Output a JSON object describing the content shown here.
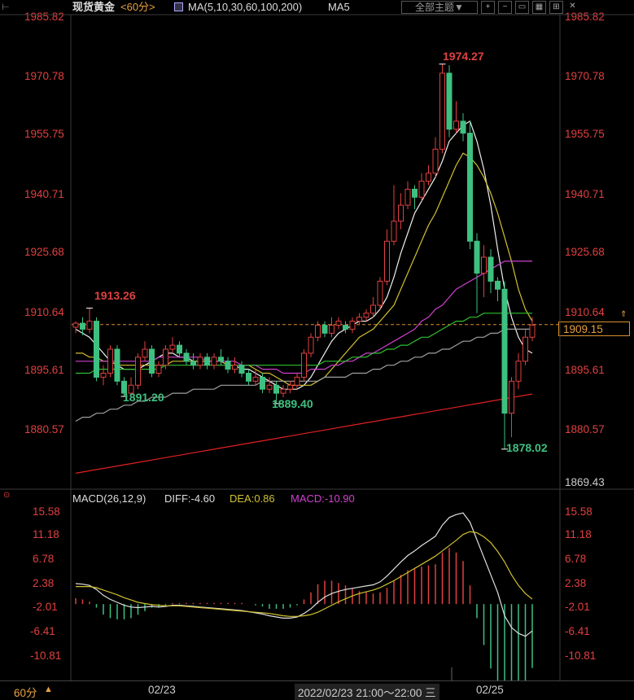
{
  "header": {
    "symbol": "现货黄金",
    "period": "<60分>",
    "ma_label": "MA(5,10,30,60,100,200)",
    "ma5_label": "MA5",
    "theme_button": "全部主题▼",
    "icons": [
      "expand-icon",
      "collapse-icon",
      "layout-icon",
      "grid-icon",
      "fullscreen-icon",
      "close-icon"
    ],
    "colors": {
      "red": "#e04040",
      "green": "#3ec080",
      "yellow": "#d0c030",
      "magenta": "#d040d0",
      "gold": "#e8a040"
    }
  },
  "price_axis": {
    "labels": [
      "1985.82",
      "1970.78",
      "1955.75",
      "1940.71",
      "1925.68",
      "1910.64",
      "1895.61",
      "1880.57"
    ],
    "bottom_label": "1869.43",
    "current_price": "1909.15"
  },
  "annotations": {
    "high_left": "1913.26",
    "low_left": "1891.20",
    "low_mid": "1889.40",
    "peak": "1974.27",
    "trough": "1878.02"
  },
  "macd": {
    "label": "MACD(26,12,9)",
    "diff": "DIFF:-4.60",
    "dea": "DEA:0.86",
    "macd": "MACD:-10.90",
    "axis_labels": [
      "15.58",
      "11.18",
      "6.78",
      "2.38",
      "-2.01",
      "-6.41",
      "-10.81"
    ]
  },
  "bottom_bar": {
    "period": "60分",
    "arrow": "▲",
    "date1": "02/23",
    "range": "2022/02/23 21:00～22:00 三",
    "date2": "02/25"
  },
  "chart_data": {
    "type": "candlestick",
    "ylim": [
      1869.43,
      1985.82
    ],
    "reference_price": 1909.15,
    "candles": [
      [
        1908.5,
        1909.5,
        1907,
        1910
      ],
      [
        1909.5,
        1908,
        1906.5,
        1911
      ],
      [
        1908,
        1910,
        1907,
        1913.26
      ],
      [
        1910,
        1896,
        1895,
        1911
      ],
      [
        1896,
        1897,
        1894,
        1899
      ],
      [
        1897,
        1903,
        1896,
        1904
      ],
      [
        1903,
        1895,
        1894,
        1904
      ],
      [
        1895,
        1892,
        1891.2,
        1896
      ],
      [
        1892,
        1894,
        1891.5,
        1896
      ],
      [
        1894,
        1901,
        1893,
        1902
      ],
      [
        1901,
        1903,
        1900,
        1905
      ],
      [
        1903,
        1897,
        1896,
        1904
      ],
      [
        1897,
        1899,
        1896,
        1900
      ],
      [
        1899,
        1903,
        1898,
        1904
      ],
      [
        1903,
        1904,
        1902,
        1906
      ],
      [
        1904,
        1902,
        1901,
        1905
      ],
      [
        1902,
        1900,
        1899,
        1903
      ],
      [
        1900,
        1899,
        1898,
        1902
      ],
      [
        1899,
        1901,
        1898,
        1902
      ],
      [
        1901,
        1899,
        1898,
        1902
      ],
      [
        1899,
        1901,
        1898,
        1902
      ],
      [
        1901,
        1900,
        1899,
        1903
      ],
      [
        1900,
        1898,
        1897,
        1901
      ],
      [
        1898,
        1899,
        1897,
        1901
      ],
      [
        1899,
        1897,
        1896,
        1900
      ],
      [
        1897,
        1895,
        1894,
        1898
      ],
      [
        1895,
        1896,
        1894,
        1898
      ],
      [
        1896,
        1893,
        1892,
        1897
      ],
      [
        1893,
        1894,
        1892,
        1896
      ],
      [
        1894,
        1892,
        1889.4,
        1895
      ],
      [
        1892,
        1893,
        1891,
        1894
      ],
      [
        1893,
        1894,
        1892,
        1895
      ],
      [
        1894,
        1896,
        1893,
        1897
      ],
      [
        1896,
        1902,
        1895,
        1903
      ],
      [
        1902,
        1906,
        1901,
        1907
      ],
      [
        1906,
        1909,
        1905,
        1910
      ],
      [
        1909,
        1907,
        1906,
        1910
      ],
      [
        1907,
        1909,
        1906,
        1911
      ],
      [
        1909,
        1910,
        1908,
        1911
      ],
      [
        1909,
        1908,
        1907,
        1910
      ],
      [
        1908,
        1910,
        1907,
        1911
      ],
      [
        1910,
        1911,
        1909,
        1912
      ],
      [
        1911,
        1912,
        1910,
        1913
      ],
      [
        1912,
        1914,
        1911,
        1916
      ],
      [
        1914,
        1920,
        1913,
        1921
      ],
      [
        1920,
        1930,
        1919,
        1933
      ],
      [
        1930,
        1935,
        1929,
        1944
      ],
      [
        1935,
        1939,
        1933,
        1942
      ],
      [
        1939,
        1943,
        1938,
        1945
      ],
      [
        1943,
        1941,
        1938,
        1944
      ],
      [
        1941,
        1945,
        1940,
        1947
      ],
      [
        1945,
        1947,
        1944,
        1949
      ],
      [
        1947,
        1953,
        1946,
        1956
      ],
      [
        1953,
        1972,
        1952,
        1974.27
      ],
      [
        1972,
        1958,
        1956,
        1974
      ],
      [
        1958,
        1960,
        1957,
        1965
      ],
      [
        1960,
        1957,
        1955,
        1962
      ],
      [
        1957,
        1930,
        1928,
        1960
      ],
      [
        1930,
        1922,
        1912,
        1932
      ],
      [
        1922,
        1926,
        1916,
        1929
      ],
      [
        1926,
        1920,
        1917,
        1928
      ],
      [
        1920,
        1918,
        1915,
        1921
      ],
      [
        1918,
        1887,
        1878.02,
        1920
      ],
      [
        1887,
        1895,
        1881,
        1896
      ],
      [
        1895,
        1900,
        1893,
        1902
      ],
      [
        1900,
        1906,
        1899,
        1908
      ],
      [
        1906,
        1909,
        1905,
        1911
      ]
    ],
    "ma_series": [
      {
        "color": "#f0f0f0",
        "values": [
          1908,
          1907,
          1906,
          1904,
          1902,
          1900,
          1899,
          1898,
          1898,
          1898,
          1899,
          1900,
          1901,
          1902,
          1902,
          1901,
          1901,
          1900,
          1900,
          1900,
          1900,
          1900,
          1899,
          1899,
          1898,
          1898,
          1897,
          1896,
          1895,
          1894,
          1893,
          1893,
          1893,
          1894,
          1896,
          1899,
          1902,
          1905,
          1907,
          1908,
          1909,
          1910,
          1910,
          1911,
          1913,
          1916,
          1921,
          1927,
          1932,
          1937,
          1940,
          1943,
          1946,
          1950,
          1955,
          1957,
          1959,
          1960,
          1955,
          1948,
          1939,
          1928,
          1918,
          1911,
          1906,
          1903,
          1902
        ]
      },
      {
        "color": "#d0c030",
        "values": [
          1902,
          1902,
          1901,
          1901,
          1900,
          1900,
          1899,
          1899,
          1899,
          1899,
          1899,
          1899,
          1899,
          1899,
          1900,
          1900,
          1900,
          1900,
          1900,
          1900,
          1900,
          1900,
          1899,
          1899,
          1899,
          1899,
          1898,
          1897,
          1897,
          1896,
          1895,
          1894,
          1894,
          1894,
          1894,
          1895,
          1896,
          1898,
          1900,
          1902,
          1904,
          1906,
          1907,
          1908,
          1910,
          1912,
          1914,
          1918,
          1922,
          1926,
          1930,
          1934,
          1937,
          1941,
          1945,
          1949,
          1952,
          1951,
          1949,
          1946,
          1942,
          1937,
          1931,
          1925,
          1918,
          1913,
          1910
        ]
      },
      {
        "color": "#d040d0",
        "values": [
          1900,
          1900,
          1900,
          1900,
          1900,
          1900,
          1900,
          1900,
          1900,
          1900,
          1900,
          1900,
          1901,
          1901,
          1901,
          1901,
          1901,
          1901,
          1901,
          1900,
          1900,
          1900,
          1900,
          1900,
          1899,
          1899,
          1899,
          1898,
          1898,
          1898,
          1897,
          1897,
          1897,
          1897,
          1898,
          1898,
          1898,
          1899,
          1899,
          1900,
          1900,
          1901,
          1902,
          1902,
          1903,
          1904,
          1905,
          1906,
          1907,
          1908,
          1910,
          1911,
          1913,
          1914,
          1916,
          1918,
          1919,
          1920,
          1921,
          1922,
          1923,
          1924,
          1925,
          1925,
          1925,
          1925,
          1925
        ]
      },
      {
        "color": "#30c030",
        "values": [
          1897,
          1897,
          1897,
          1898,
          1898,
          1898,
          1898,
          1898,
          1898,
          1898,
          1898,
          1898,
          1898,
          1899,
          1899,
          1899,
          1899,
          1899,
          1899,
          1899,
          1899,
          1899,
          1899,
          1899,
          1899,
          1899,
          1899,
          1899,
          1899,
          1899,
          1899,
          1899,
          1899,
          1899,
          1899,
          1899,
          1900,
          1900,
          1900,
          1900,
          1901,
          1901,
          1901,
          1902,
          1902,
          1903,
          1903,
          1904,
          1904,
          1905,
          1906,
          1906,
          1907,
          1908,
          1909,
          1910,
          1910,
          1911,
          1911,
          1912,
          1912,
          1912,
          1912,
          1912,
          1912,
          1912,
          1912
        ]
      },
      {
        "color": "#a0a0a0",
        "values": [
          1885,
          1886,
          1886,
          1887,
          1887,
          1888,
          1888,
          1889,
          1889,
          1890,
          1890,
          1891,
          1891,
          1891,
          1892,
          1892,
          1892,
          1893,
          1893,
          1893,
          1893,
          1894,
          1894,
          1894,
          1894,
          1894,
          1894,
          1895,
          1895,
          1895,
          1895,
          1895,
          1895,
          1895,
          1895,
          1895,
          1896,
          1896,
          1896,
          1896,
          1897,
          1897,
          1897,
          1898,
          1898,
          1899,
          1899,
          1900,
          1900,
          1901,
          1901,
          1902,
          1902,
          1903,
          1903,
          1904,
          1905,
          1905,
          1906,
          1906,
          1907,
          1907,
          1908,
          1908,
          1908,
          1908,
          1908
        ]
      },
      {
        "color": "#e02020",
        "values": [
          1872,
          1872.3,
          1872.6,
          1872.9,
          1873.2,
          1873.5,
          1873.8,
          1874.1,
          1874.4,
          1874.7,
          1875,
          1875.3,
          1875.6,
          1875.9,
          1876.2,
          1876.5,
          1876.8,
          1877.1,
          1877.4,
          1877.7,
          1878,
          1878.3,
          1878.6,
          1878.9,
          1879.2,
          1879.5,
          1879.8,
          1880.1,
          1880.4,
          1880.7,
          1881,
          1881.3,
          1881.6,
          1881.9,
          1882.2,
          1882.5,
          1882.8,
          1883.1,
          1883.4,
          1883.7,
          1884,
          1884.3,
          1884.6,
          1884.9,
          1885.2,
          1885.5,
          1885.8,
          1886.1,
          1886.4,
          1886.7,
          1887,
          1887.3,
          1887.6,
          1887.9,
          1888.2,
          1888.5,
          1888.8,
          1889.1,
          1889.4,
          1889.7,
          1890,
          1890.3,
          1890.6,
          1890.9,
          1891.2,
          1891.5,
          1891.8
        ]
      }
    ],
    "macd_series": {
      "ylim": [
        -12.5,
        17
      ],
      "diff": [
        3.5,
        3.4,
        3.2,
        2.5,
        1.5,
        0.8,
        0.3,
        -0.2,
        -0.5,
        -0.6,
        -0.5,
        -0.4,
        -0.5,
        -0.4,
        -0.2,
        -0.2,
        -0.3,
        -0.4,
        -0.5,
        -0.6,
        -0.7,
        -0.8,
        -0.9,
        -1.0,
        -1.1,
        -1.3,
        -1.5,
        -1.7,
        -2.0,
        -2.2,
        -2.4,
        -2.4,
        -2.2,
        -1.6,
        -0.8,
        0.3,
        1.2,
        1.8,
        2.2,
        2.5,
        2.7,
        2.9,
        3.1,
        3.3,
        3.8,
        4.8,
        6.0,
        7.2,
        8.3,
        9.1,
        10.0,
        10.8,
        11.6,
        13.5,
        14.8,
        15.3,
        15.58,
        14.0,
        11.0,
        8.0,
        5.0,
        2.0,
        -2.0,
        -4.0,
        -5.0,
        -5.5,
        -4.6
      ],
      "dea": [
        3.0,
        3.0,
        3.0,
        2.8,
        2.4,
        2.0,
        1.6,
        1.1,
        0.7,
        0.3,
        0.1,
        -0.1,
        -0.2,
        -0.3,
        -0.3,
        -0.3,
        -0.4,
        -0.5,
        -0.6,
        -0.7,
        -0.8,
        -0.9,
        -1.0,
        -1.1,
        -1.2,
        -1.3,
        -1.4,
        -1.5,
        -1.6,
        -1.8,
        -2.0,
        -2.1,
        -2.1,
        -2.0,
        -1.8,
        -1.4,
        -0.8,
        -0.2,
        0.4,
        0.9,
        1.4,
        1.8,
        2.1,
        2.4,
        2.8,
        3.4,
        4.0,
        4.7,
        5.4,
        6.1,
        6.8,
        7.5,
        8.2,
        9.1,
        10.0,
        10.9,
        11.9,
        12.4,
        12.2,
        11.5,
        10.5,
        9.0,
        7.2,
        5.0,
        3.2,
        1.8,
        0.86
      ]
    }
  }
}
